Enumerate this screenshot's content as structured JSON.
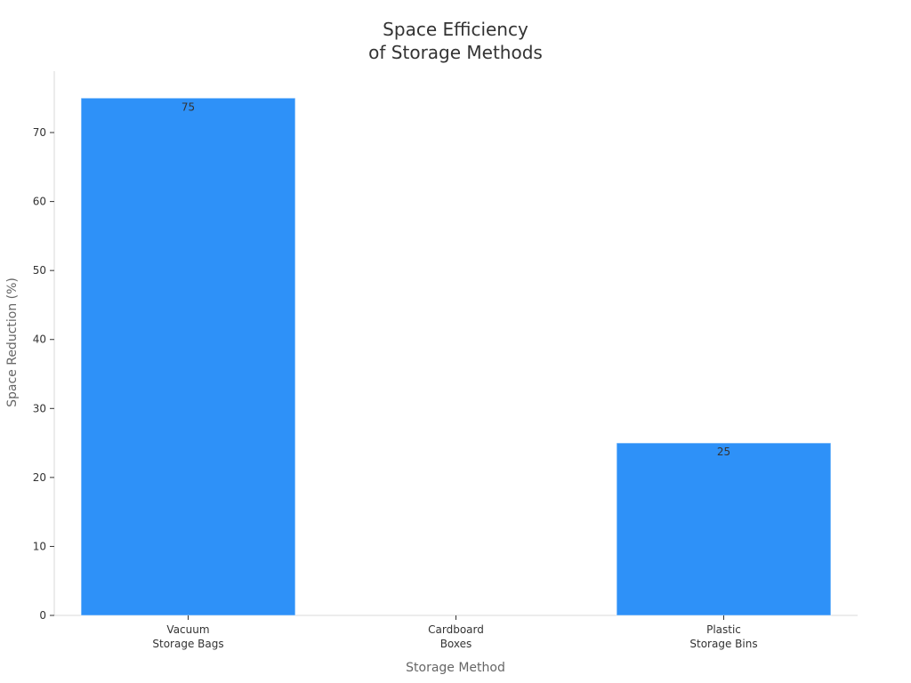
{
  "chart_data": {
    "type": "bar",
    "title_lines": [
      "Space Efficiency",
      "of Storage Methods"
    ],
    "xlabel": "Storage Method",
    "ylabel": "Space Reduction (%)",
    "categories": [
      [
        "Vacuum",
        "Storage Bags"
      ],
      [
        "Cardboard",
        "Boxes"
      ],
      [
        "Plastic",
        "Storage Bins"
      ]
    ],
    "values": [
      75,
      0,
      25
    ],
    "data_labels": [
      "75",
      "",
      "25"
    ],
    "ylim": [
      0,
      78.9
    ],
    "yticks": [
      0,
      10,
      20,
      30,
      40,
      50,
      60,
      70
    ],
    "bar_color": "#2E91F8",
    "axis_color": "#d9d9d9",
    "grid": false,
    "legend": "none"
  }
}
